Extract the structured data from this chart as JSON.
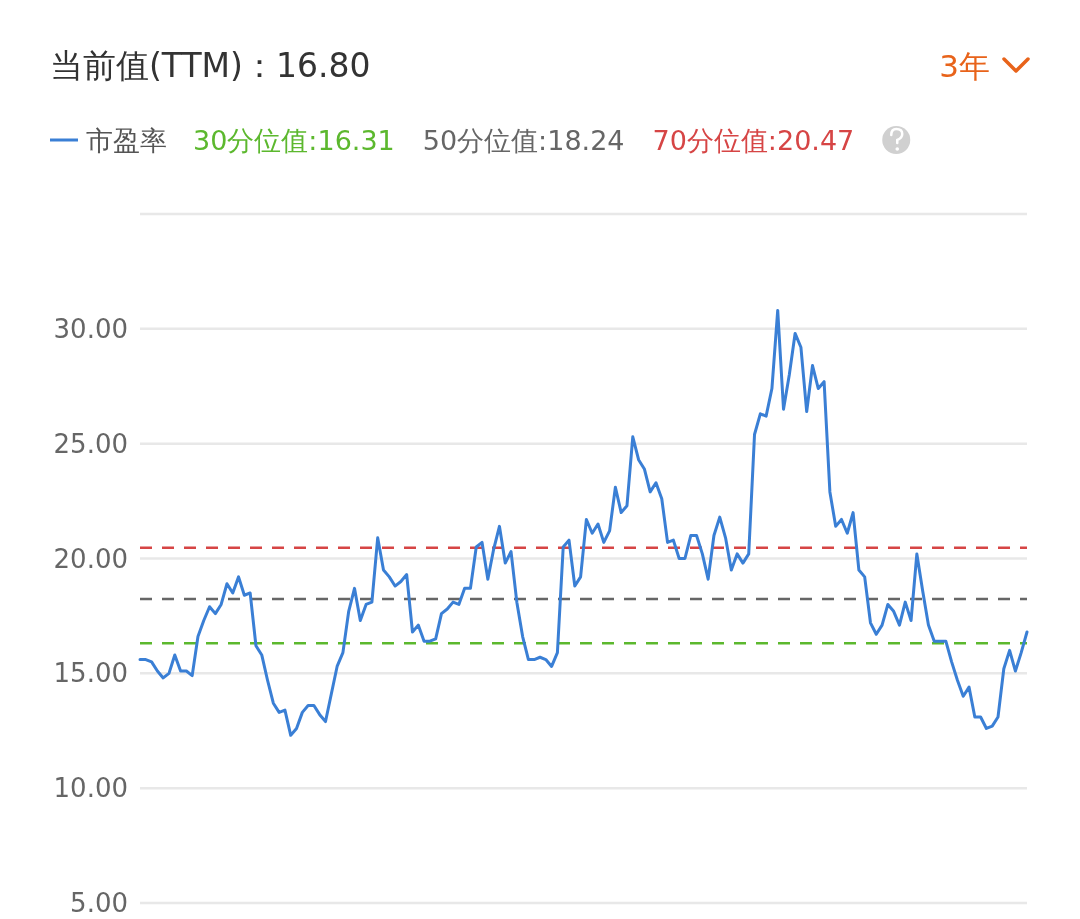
{
  "chart_data": {
    "type": "line",
    "title": "当前值(TTM)：16.80",
    "annotations": [
      "3年"
    ],
    "categories": [
      null,
      null,
      null,
      null,
      null,
      null,
      null,
      null,
      null,
      null,
      null,
      null,
      null,
      null,
      null,
      null,
      null,
      null,
      null,
      null,
      null,
      null,
      null,
      null,
      null,
      null,
      null,
      null,
      null,
      null,
      null,
      null,
      null,
      null,
      null,
      null,
      null,
      null,
      null,
      null,
      null,
      null,
      null,
      null,
      null,
      null,
      null,
      null,
      null,
      null,
      null,
      null,
      null,
      null,
      null,
      null,
      null,
      null,
      null,
      null,
      null,
      null,
      null,
      null,
      null,
      null,
      null,
      null,
      null,
      null,
      null,
      null,
      null,
      null,
      null,
      null,
      null,
      null,
      null,
      null,
      null,
      null,
      null,
      null,
      null,
      null,
      null,
      null,
      null,
      null,
      null,
      null,
      null,
      null,
      null,
      null,
      null,
      null,
      null,
      null,
      null,
      null,
      null,
      null,
      null,
      null,
      null,
      null,
      null,
      null,
      null,
      null,
      null,
      null,
      null,
      null,
      null,
      null,
      null,
      null,
      null,
      null,
      null,
      null,
      null,
      null,
      null,
      null,
      null,
      null,
      null,
      null,
      null,
      null,
      null,
      null,
      null,
      null,
      null,
      null,
      null,
      null,
      null,
      null,
      null,
      null,
      null,
      null,
      null,
      null,
      null,
      null,
      null,
      null
    ],
    "series": [
      {
        "name": "市盈率",
        "color": "#3a7fd5",
        "values": [
          15.6,
          15.6,
          15.5,
          15.1,
          14.8,
          15.0,
          15.8,
          15.1,
          15.1,
          14.9,
          16.6,
          17.3,
          17.9,
          17.6,
          18.0,
          18.9,
          18.5,
          19.2,
          18.4,
          18.5,
          16.2,
          15.8,
          14.7,
          13.7,
          13.3,
          13.4,
          12.3,
          12.6,
          13.3,
          13.6,
          13.6,
          13.2,
          12.9,
          14.1,
          15.3,
          15.9,
          17.7,
          18.7,
          17.3,
          18.0,
          18.1,
          20.9,
          19.5,
          19.2,
          18.8,
          19.0,
          19.3,
          16.8,
          17.1,
          16.4,
          16.4,
          16.5,
          17.6,
          17.8,
          18.1,
          18.0,
          18.7,
          18.7,
          20.5,
          20.7,
          19.1,
          20.4,
          21.4,
          19.8,
          20.3,
          18.1,
          16.6,
          15.6,
          15.6,
          15.7,
          15.6,
          15.3,
          15.9,
          20.5,
          20.8,
          18.8,
          19.2,
          21.7,
          21.1,
          21.5,
          20.7,
          21.2,
          23.1,
          22.0,
          22.3,
          25.3,
          24.3,
          23.9,
          22.9,
          23.3,
          22.6,
          20.7,
          20.8,
          20.0,
          20.0,
          21.0,
          21.0,
          20.2,
          19.1,
          21.0,
          21.8,
          20.9,
          19.5,
          20.2,
          19.8,
          20.2,
          25.4,
          26.3,
          26.2,
          27.4,
          30.8,
          26.5,
          28.0,
          29.8,
          29.2,
          26.4,
          28.4,
          27.4,
          27.7,
          22.9,
          21.4,
          21.7,
          21.1,
          22.0,
          19.5,
          19.2,
          17.2,
          16.7,
          17.1,
          18.0,
          17.7,
          17.1,
          18.1,
          17.3,
          20.2,
          18.6,
          17.1,
          16.4,
          16.4,
          16.4,
          15.5,
          14.7,
          14.0,
          14.4,
          13.1,
          13.1,
          12.6,
          12.7,
          13.1,
          15.2,
          16.0,
          15.1,
          15.9,
          16.8
        ]
      }
    ],
    "ylim": [
      5,
      35
    ],
    "yticks": [
      {
        "value": 5,
        "label": "5.00"
      },
      {
        "value": 10,
        "label": "10.00"
      },
      {
        "value": 15,
        "label": "15.00"
      },
      {
        "value": 20,
        "label": "20.00"
      },
      {
        "value": 25,
        "label": "25.00"
      },
      {
        "value": 30,
        "label": "30.00"
      },
      {
        "value": 35,
        "label": null
      }
    ],
    "ref_lines": [
      {
        "axis": "y",
        "value": 16.31,
        "label": "30分位值:16.31",
        "color": "#5cb82e",
        "line_style": "dashed"
      },
      {
        "axis": "y",
        "value": 18.24,
        "label": "50分位值:18.24",
        "color": "#666666",
        "line_style": "dashed"
      },
      {
        "axis": "y",
        "value": 20.47,
        "label": "70分位值:20.47",
        "color": "#d64545",
        "line_style": "dashed"
      }
    ],
    "grid": "y",
    "legend": "top left",
    "marker": "none",
    "line_style": "solid"
  }
}
